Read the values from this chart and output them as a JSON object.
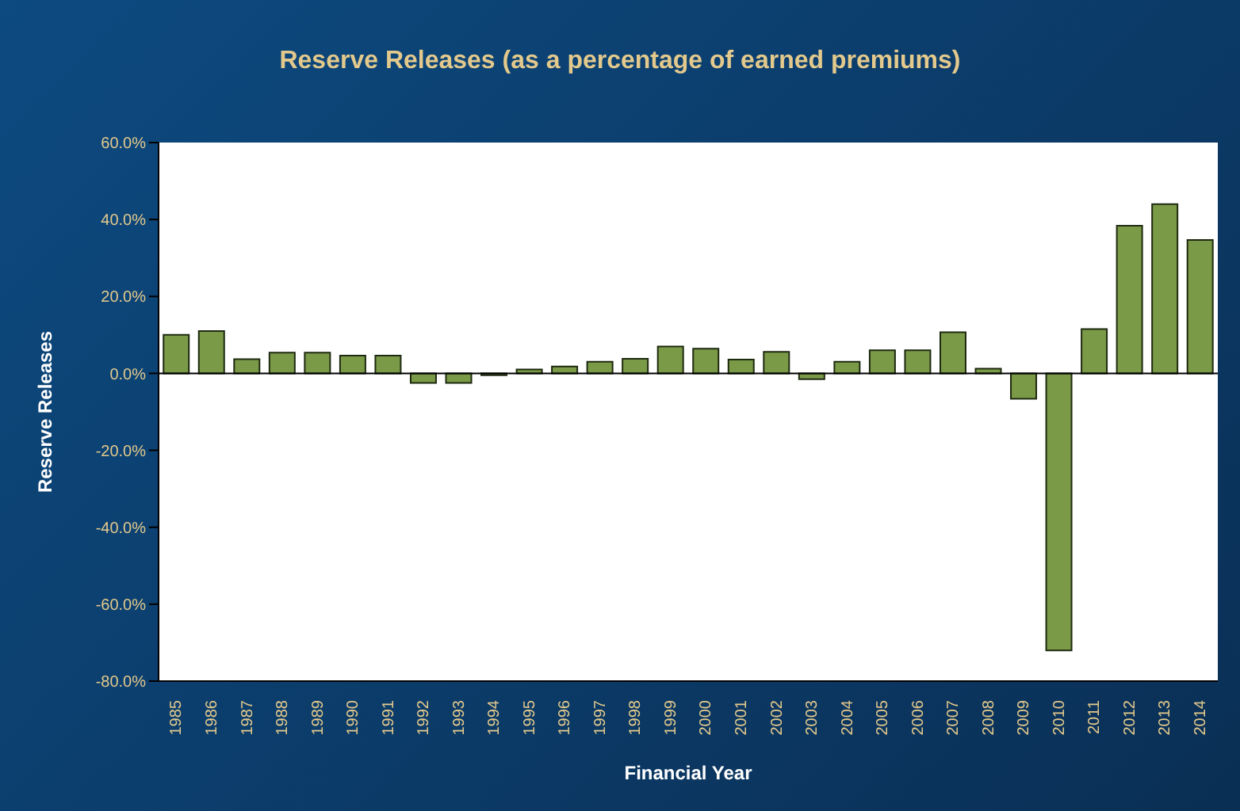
{
  "chart_data": {
    "type": "bar",
    "title": "Reserve Releases (as a percentage of earned premiums)",
    "xlabel": "Financial Year",
    "ylabel": "Reserve Releases",
    "categories": [
      "1985",
      "1986",
      "1987",
      "1988",
      "1989",
      "1990",
      "1991",
      "1992",
      "1993",
      "1994",
      "1995",
      "1996",
      "1997",
      "1998",
      "1999",
      "2000",
      "2001",
      "2002",
      "2003",
      "2004",
      "2005",
      "2006",
      "2007",
      "2008",
      "2009",
      "2010",
      "2011",
      "2012",
      "2013",
      "2014"
    ],
    "values": [
      10,
      11,
      3.7,
      5.4,
      5.4,
      4.6,
      4.6,
      -2.5,
      -2.5,
      -0.5,
      1,
      1.8,
      3,
      3.8,
      7,
      6.4,
      3.6,
      5.6,
      -1.5,
      3,
      6,
      6,
      10.7,
      1.2,
      -6.6,
      -72,
      11.5,
      38.4,
      44,
      34.7
    ],
    "color": "#7a9a48",
    "ylim": [
      -80,
      60
    ],
    "yticks": [
      {
        "value": -80,
        "label": "-80.0%"
      },
      {
        "value": -60,
        "label": "-60.0%"
      },
      {
        "value": -40,
        "label": "-40.0%"
      },
      {
        "value": -20,
        "label": "-20.0%"
      },
      {
        "value": 0,
        "label": "0.0%"
      },
      {
        "value": 20,
        "label": "20.0%"
      },
      {
        "value": 40,
        "label": "40.0%"
      },
      {
        "value": 60,
        "label": "60.0%"
      }
    ],
    "tick_labels": true
  }
}
